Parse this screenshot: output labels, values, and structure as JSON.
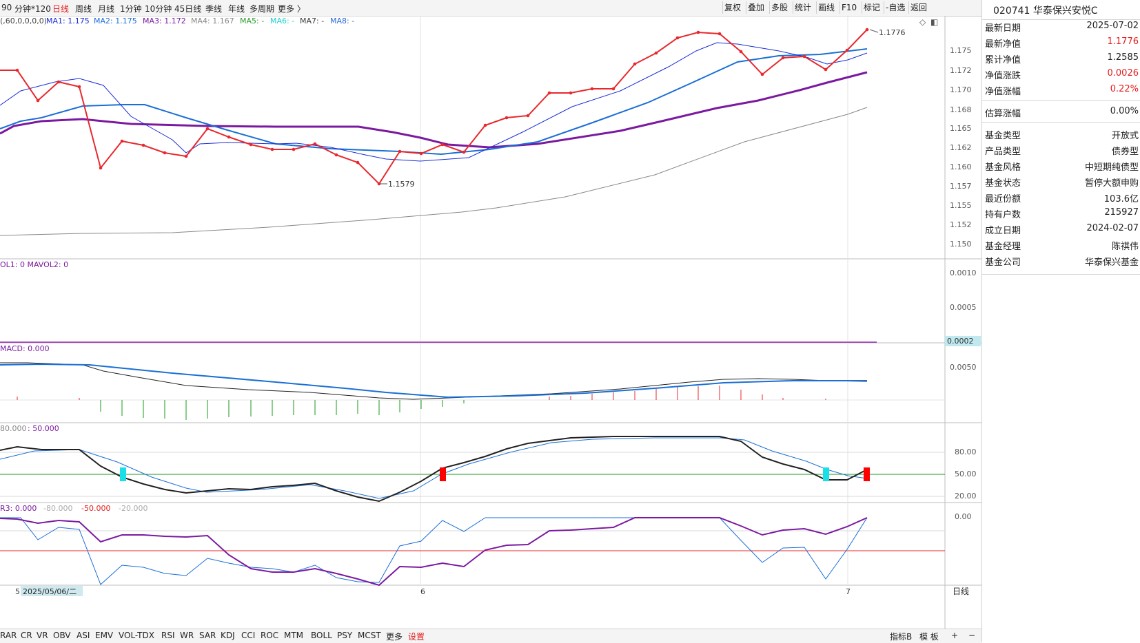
{
  "toolbar": {
    "periods": [
      "90",
      "分钟*120",
      "日线",
      "周线",
      "月线",
      "1分钟",
      "10分钟",
      "45日线",
      "季线",
      "年线",
      "多周期",
      "更多 〉"
    ],
    "active_period": "日线",
    "buttons": [
      "复权",
      "叠加",
      "多股",
      "统计",
      "画线",
      "F10",
      "标记",
      "-自选",
      "返回"
    ]
  },
  "main_chart": {
    "params_text": "(,60,0,0,0,0)",
    "legend": [
      {
        "label": "MA1: 1.175",
        "color": "#1a2bd6"
      },
      {
        "label": "MA2: 1.175",
        "color": "#1a6fd6"
      },
      {
        "label": "MA3: 1.172",
        "color": "#7b1aa0"
      },
      {
        "label": "MA4: 1.167",
        "color": "#888888"
      },
      {
        "label": "MA5: -",
        "color": "#2a9a2a"
      },
      {
        "label": "MA6: -",
        "color": "#19d0d0"
      },
      {
        "label": "MA7: -",
        "color": "#3a3a3a"
      },
      {
        "label": "MA8: -",
        "color": "#2a6bd6"
      }
    ],
    "y_ticks": [
      "1.175",
      "1.172",
      "1.170",
      "1.168",
      "1.165",
      "1.162",
      "1.160",
      "1.157",
      "1.155",
      "1.152",
      "1.150"
    ],
    "annotation_high": "1.1776",
    "annotation_low": "1.1579",
    "nav": [
      1.172,
      1.172,
      1.1687,
      1.1709,
      1.1703,
      1.16,
      1.1631,
      1.1627,
      1.1617,
      1.1613,
      1.1647,
      1.1636,
      1.1626,
      1.1621,
      1.1621,
      1.1626,
      1.1614,
      1.1605,
      1.1579,
      1.1617,
      1.1617,
      1.1627,
      1.1619,
      1.1652,
      1.1665,
      1.1665,
      1.1695,
      1.1695,
      1.17,
      1.17,
      1.1728,
      1.1745,
      1.176,
      1.1768,
      1.1766,
      1.175,
      1.1716,
      1.1736,
      1.1736,
      1.1721,
      1.175,
      1.1776
    ],
    "colors": {
      "nav": "#e8282d",
      "ma1": "#1a2bd6",
      "ma2": "#1a6fd6",
      "ma3": "#7b1aa0",
      "ma4": "#888888"
    }
  },
  "volume": {
    "legend": "OL1: 0  MAVOL2: 0",
    "y_ticks": [
      "0.0010",
      "0.0005"
    ],
    "highlight_value": "0.0002"
  },
  "macd": {
    "legend": "MACD: 0.000",
    "y_ticks": [
      "0.0050"
    ]
  },
  "kdj": {
    "legend_a": "80.000",
    "legend_b": ": 50.000",
    "y_ticks": [
      "80.00",
      "50.00",
      "20.00"
    ]
  },
  "wr": {
    "legend_a": "R3: 0.000",
    "legend_b": "-80.000",
    "legend_c": "-50.000",
    "legend_d": "-20.000",
    "y_ticks": [
      "0.00"
    ]
  },
  "x_axis": {
    "label_5": "5",
    "date_label": "2025/05/06/二",
    "label_6": "6",
    "label_7": "7",
    "right_label": "日线"
  },
  "bottom_tabs": [
    "RAR",
    "CR",
    "VR",
    "OBV",
    "ASI",
    "EMV",
    "VOL-TDX",
    "RSI",
    "WR",
    "SAR",
    "KDJ",
    "CCI",
    "ROC",
    "MTM",
    "BOLL",
    "PSY",
    "MCST",
    "更多",
    "设置"
  ],
  "bottom_right": {
    "indicator_b": "指标B",
    "template": "模 板",
    "plus": "+",
    "minus": "−"
  },
  "fund_panel": {
    "title": "020741 华泰保兴安悦C",
    "rows": [
      {
        "k": "最新日期",
        "v": "2025-07-02",
        "red": false
      },
      {
        "k": "最新净值",
        "v": "1.1776",
        "red": true
      },
      {
        "k": "累计净值",
        "v": "1.2585",
        "red": false
      },
      {
        "k": "净值涨跌",
        "v": "0.0026",
        "red": true
      },
      {
        "k": "净值涨幅",
        "v": "0.22%",
        "red": true
      },
      {
        "k": "估算涨幅",
        "v": "0.00%",
        "red": false
      },
      {
        "k": "基金类型",
        "v": "开放式",
        "red": false
      },
      {
        "k": "产品类型",
        "v": "债券型",
        "red": false
      },
      {
        "k": "基金风格",
        "v": "中短期纯债型",
        "red": false
      },
      {
        "k": "基金状态",
        "v": "暂停大额申购",
        "red": false
      },
      {
        "k": "最近份额",
        "v": "103.6亿",
        "red": false
      },
      {
        "k": "持有户数",
        "v": "215927",
        "red": false
      },
      {
        "k": "成立日期",
        "v": "2024-02-07",
        "red": false
      },
      {
        "k": "基金经理",
        "v": "陈祺伟",
        "red": false
      },
      {
        "k": "基金公司",
        "v": "华泰保兴基金",
        "red": false
      }
    ]
  }
}
